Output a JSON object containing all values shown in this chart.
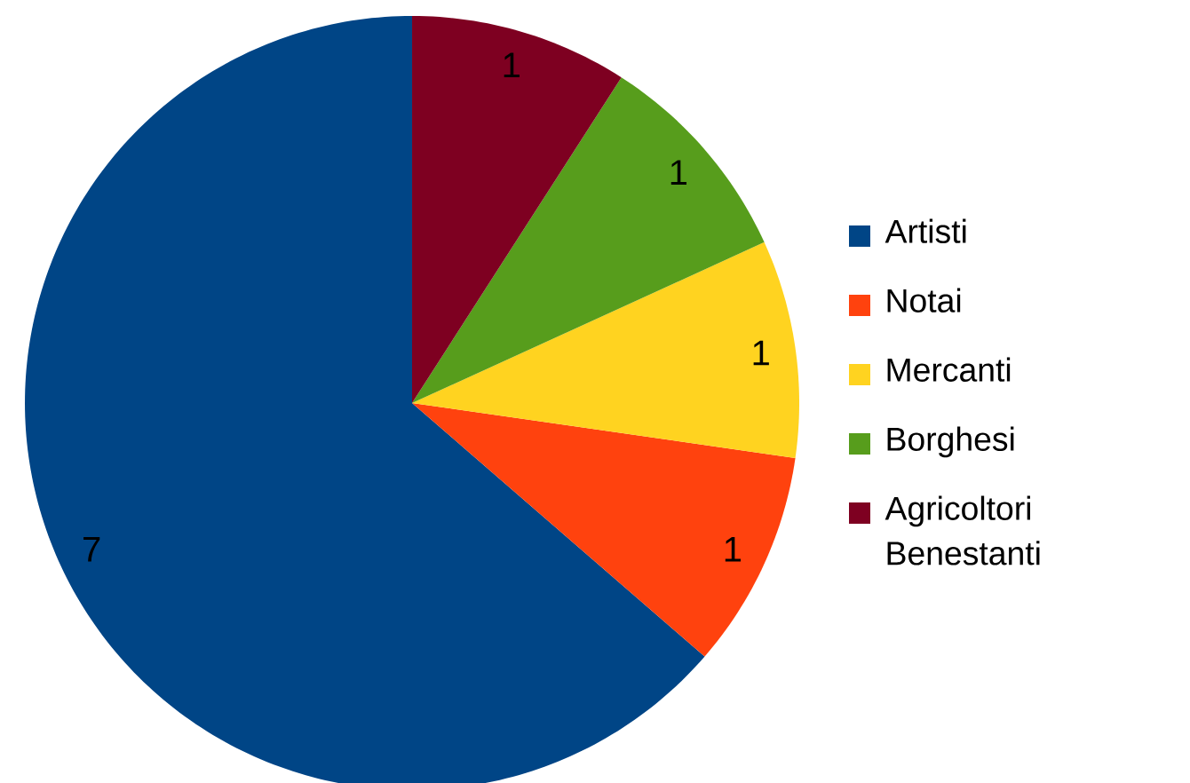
{
  "chart_data": {
    "type": "pie",
    "categories": [
      "Artisti",
      "Notai",
      "Mercanti",
      "Borghesi",
      "Agricoltori Benestanti"
    ],
    "values": [
      7,
      1,
      1,
      1,
      1
    ],
    "colors": [
      "#004586",
      "#ff420e",
      "#ffd320",
      "#579d1c",
      "#7e0021"
    ],
    "data_labels": true,
    "legend": "right"
  }
}
